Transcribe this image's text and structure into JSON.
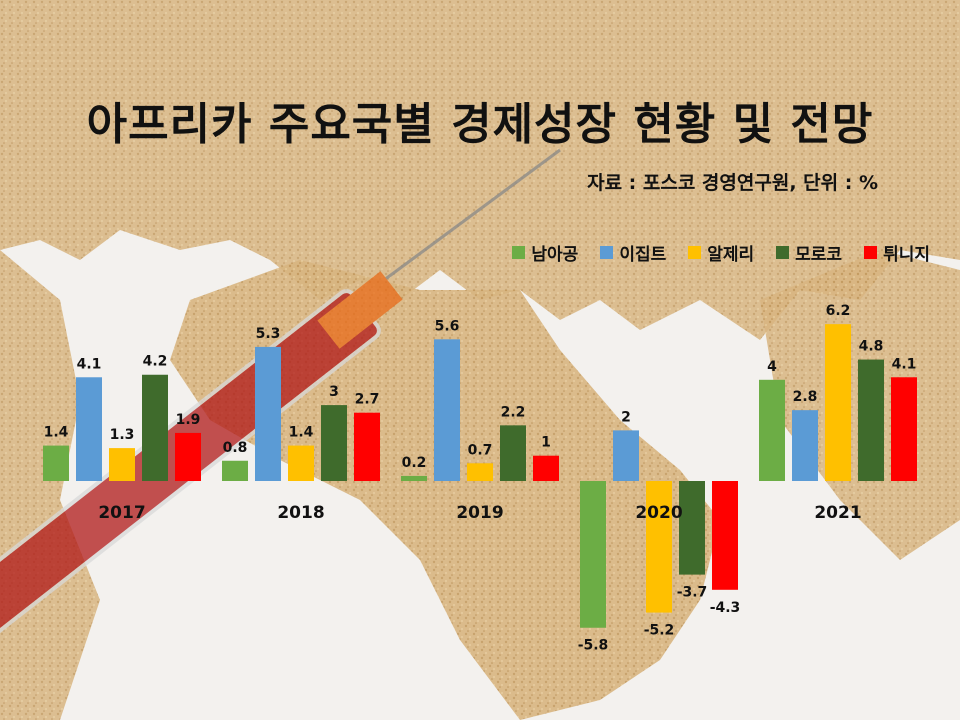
{
  "title": "아프리카 주요국별 경제성장 현황 및 전망",
  "source": "자료 : 포스코 경영연구원, 단위 : %",
  "colors": {
    "남아공": "#6cad45",
    "이집트": "#5b9bd5",
    "알제리": "#ffc000",
    "모로코": "#3f6b2c",
    "튀니지": "#ff0000"
  },
  "chart_data": {
    "type": "bar",
    "categories": [
      "2017",
      "2018",
      "2019",
      "2020",
      "2021"
    ],
    "series": [
      {
        "name": "남아공",
        "values": [
          1.4,
          0.8,
          0.2,
          -5.8,
          4
        ]
      },
      {
        "name": "이집트",
        "values": [
          4.1,
          5.3,
          5.6,
          2,
          2.8
        ]
      },
      {
        "name": "알제리",
        "values": [
          1.3,
          1.4,
          0.7,
          -5.2,
          6.2
        ]
      },
      {
        "name": "모로코",
        "values": [
          4.2,
          3,
          2.2,
          -3.7,
          4.8
        ]
      },
      {
        "name": "튀니지",
        "values": [
          1.9,
          2.7,
          1,
          -4.3,
          4.1
        ]
      }
    ],
    "value_labels": [
      [
        "1.4",
        "0.8",
        "0.2",
        "-5.8",
        "4"
      ],
      [
        "4.1",
        "5.3",
        "5.6",
        "2",
        "2.8"
      ],
      [
        "1.3",
        "1.4",
        "0.7",
        "-5.2",
        "6.2"
      ],
      [
        "4.2",
        "3",
        "2.2",
        "-3.7",
        "4.8"
      ],
      [
        "1.9",
        "2.7",
        "1",
        "-4.3",
        "4.1"
      ]
    ],
    "legend_position": "top-right",
    "grid": false
  }
}
